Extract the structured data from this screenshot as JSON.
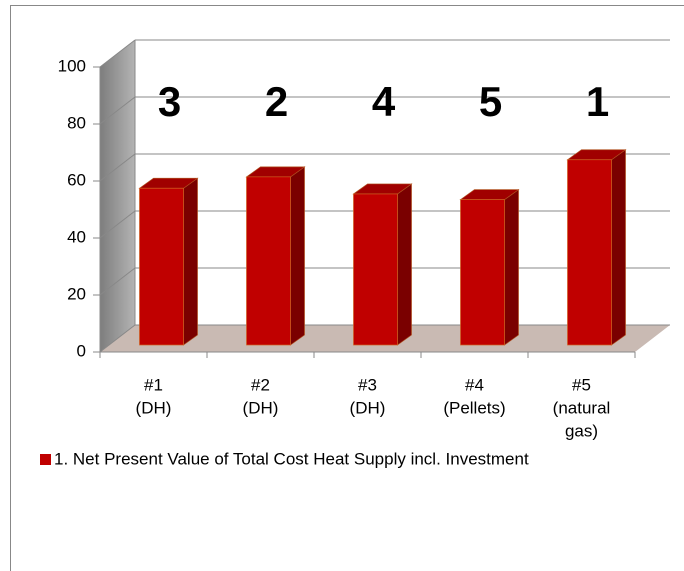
{
  "chart_data": {
    "type": "bar3d",
    "categories": [
      [
        "#1",
        "(DH)"
      ],
      [
        "#2",
        "(DH)"
      ],
      [
        "#3",
        "(DH)"
      ],
      [
        "#4",
        "(Pellets)"
      ],
      [
        "#5",
        "(natural",
        "gas)"
      ]
    ],
    "series": [
      {
        "name": "1. Net Present Value of Total Cost Heat Supply incl. Investment",
        "color": "#c00000",
        "values": [
          55,
          59,
          53,
          51,
          65
        ]
      }
    ],
    "annotations": [
      "3",
      "2",
      "4",
      "5",
      "1"
    ],
    "ylim": [
      0,
      100
    ],
    "yticks": [
      0,
      20,
      40,
      60,
      80,
      100
    ],
    "grid": true,
    "legend": "bottom-left"
  }
}
